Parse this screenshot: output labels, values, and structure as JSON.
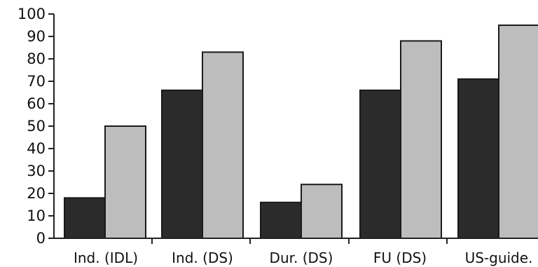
{
  "chart_data": {
    "type": "bar",
    "categories": [
      "Ind. (IDL)",
      "Ind. (DS)",
      "Dur. (DS)",
      "FU (DS)",
      "US-guide."
    ],
    "series": [
      {
        "values": [
          18,
          66,
          16,
          66,
          71
        ],
        "color": "#2b2b2b"
      },
      {
        "values": [
          50,
          83,
          24,
          88,
          95
        ],
        "color": "#bdbdbd"
      }
    ],
    "ylim": [
      0,
      100
    ],
    "yticks": [
      0,
      10,
      20,
      30,
      40,
      50,
      60,
      70,
      80,
      90,
      100
    ],
    "grid": false,
    "title": "",
    "xlabel": "",
    "ylabel": ""
  }
}
